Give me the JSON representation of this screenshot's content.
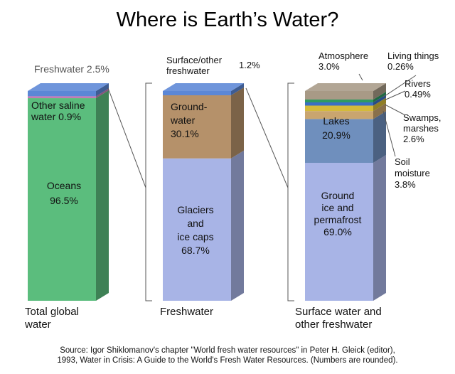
{
  "chart_data": {
    "type": "stacked-bar",
    "title": "Where is Earth’s Water?",
    "unit": "%",
    "bars": [
      {
        "name": "total-global-water",
        "category_lines": [
          "Total global",
          "water"
        ],
        "segments": [
          {
            "key": "oceans",
            "label_lines": [
              "Oceans",
              "96.5%"
            ],
            "value": 96.5,
            "color": "#5bbd7d"
          },
          {
            "key": "other-saline",
            "label_lines": [
              "Other saline",
              "water 0.9%"
            ],
            "value": 0.9,
            "color": "#c47ab5"
          },
          {
            "key": "freshwater",
            "label_lines": [
              "Freshwater 2.5%"
            ],
            "value": 2.5,
            "color": "#5b87d6"
          }
        ]
      },
      {
        "name": "freshwater",
        "category_lines": [
          "Freshwater"
        ],
        "segments": [
          {
            "key": "glaciers",
            "label_lines": [
              "Glaciers",
              "and",
              "ice caps",
              "68.7%"
            ],
            "value": 68.7,
            "color": "#a8b4e6"
          },
          {
            "key": "groundwater",
            "label_lines": [
              "Ground-",
              "water",
              "30.1%"
            ],
            "value": 30.1,
            "color": "#b5916a"
          },
          {
            "key": "surface-other",
            "label_lines": [
              "Surface/other",
              "freshwater",
              "1.2%"
            ],
            "value": 1.2,
            "color": "#5b87d6"
          }
        ]
      },
      {
        "name": "surface-water",
        "category_lines": [
          "Surface water and",
          "other freshwater"
        ],
        "segments": [
          {
            "key": "ground-ice",
            "label_lines": [
              "Ground",
              "ice and",
              "permafrost",
              "69.0%"
            ],
            "value": 69.0,
            "color": "#a8b4e6"
          },
          {
            "key": "lakes",
            "label_lines": [
              "Lakes",
              "20.9%"
            ],
            "value": 20.9,
            "color": "#6f8fbd"
          },
          {
            "key": "soil-moisture",
            "label_lines": [
              "Soil",
              "moisture",
              "3.8%"
            ],
            "value": 3.8,
            "color": "#c9a56f"
          },
          {
            "key": "swamps",
            "label_lines": [
              "Swamps,",
              "marshes",
              "2.6%"
            ],
            "value": 2.6,
            "color": "#d4ba3a"
          },
          {
            "key": "rivers",
            "label_lines": [
              "Rivers",
              "0.49%"
            ],
            "value": 0.49,
            "color": "#3a6fc4"
          },
          {
            "key": "living",
            "label_lines": [
              "Living things",
              "0.26%"
            ],
            "value": 0.26,
            "color": "#2f9a62"
          },
          {
            "key": "atmosphere",
            "label_lines": [
              "Atmosphere",
              "3.0%"
            ],
            "value": 3.0,
            "color": "#a89a86"
          }
        ]
      }
    ],
    "source_lines": [
      "Source: Igor Shiklomanov's chapter \"World fresh water resources\" in Peter H. Gleick (editor),",
      "1993, Water in Crisis: A Guide to the World's Fresh Water Resources. (Numbers are rounded)."
    ]
  }
}
